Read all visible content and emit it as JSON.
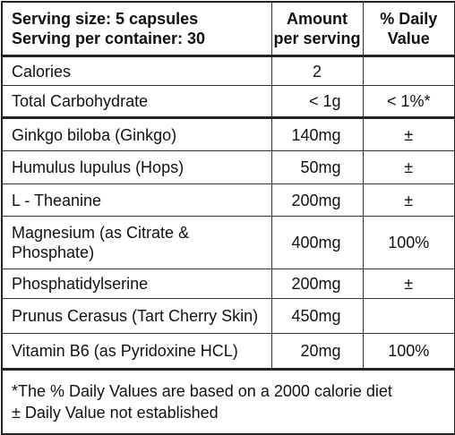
{
  "header": {
    "serving": [
      "Serving size: 5 capsules",
      "Serving per container: 30"
    ],
    "amount": [
      "Amount",
      "per serving"
    ],
    "daily_value": [
      "% Daily",
      "Value"
    ]
  },
  "rows": [
    {
      "name": [
        "Calories"
      ],
      "amount": "2",
      "dv": ""
    },
    {
      "name": [
        "Total Carbohydrate"
      ],
      "amount": "< 1g",
      "dv": "< 1%*"
    },
    {
      "name": [
        "Ginkgo biloba (Ginkgo)"
      ],
      "amount": "140mg",
      "dv": "±"
    },
    {
      "name": [
        "Humulus lupulus (Hops)"
      ],
      "amount": "50mg",
      "dv": "±"
    },
    {
      "name": [
        "L - Theanine"
      ],
      "amount": "200mg",
      "dv": "±"
    },
    {
      "name": [
        "Magnesium (as Citrate &",
        "Phosphate)"
      ],
      "amount": "400mg",
      "dv": "100%"
    },
    {
      "name": [
        "Phosphatidylserine"
      ],
      "amount": "200mg",
      "dv": "±"
    },
    {
      "name": [
        "Prunus Cerasus (Tart Cherry Skin)"
      ],
      "amount": "450mg",
      "dv": ""
    },
    {
      "name": [
        "Vitamin B6 (as Pyridoxine HCL)"
      ],
      "amount": "20mg",
      "dv": "100%"
    }
  ],
  "footnotes": [
    "*The % Daily Values are based on a 2000 calorie diet",
    "± Daily Value not established"
  ]
}
